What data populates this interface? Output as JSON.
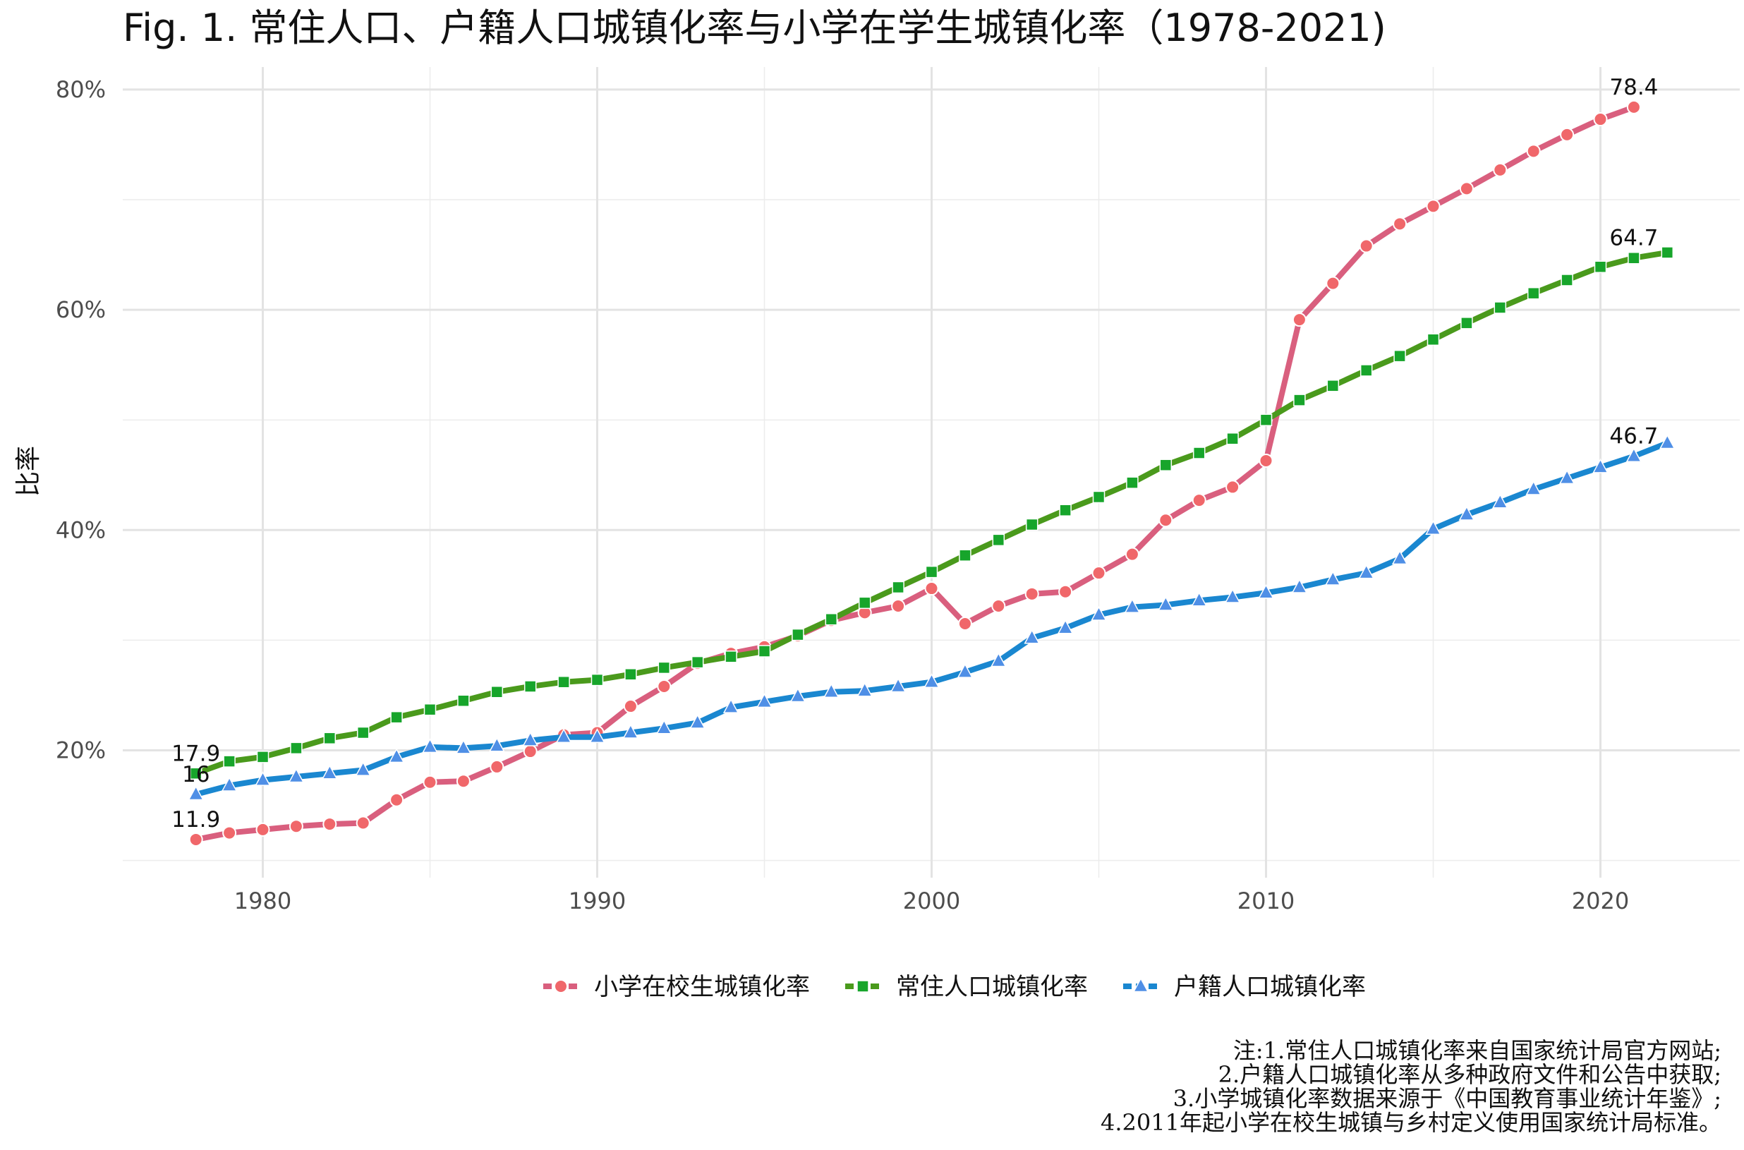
{
  "chart_data": {
    "type": "line",
    "title": "Fig. 1. 常住人口、户籍人口城镇化率与小学在学生城镇化率（1978-2021)",
    "xlabel": "",
    "ylabel": "比率",
    "xlim": [
      1976,
      2024
    ],
    "ylim": [
      9,
      82
    ],
    "x_ticks": [
      1980,
      1990,
      2000,
      2010,
      2020
    ],
    "x_tick_labels": [
      "1980",
      "1990",
      "2000",
      "2010",
      "2020"
    ],
    "y_ticks": [
      20,
      40,
      60,
      80
    ],
    "y_tick_labels": [
      "20%",
      "40%",
      "60%",
      "80%"
    ],
    "grid": true,
    "legend_position": "bottom",
    "series": [
      {
        "name": "小学在校生城镇化率",
        "color": "#d95f7e",
        "marker_color": "#f0676a",
        "marker": "circle",
        "x": [
          1978,
          1979,
          1980,
          1981,
          1982,
          1983,
          1984,
          1985,
          1986,
          1987,
          1988,
          1989,
          1990,
          1991,
          1992,
          1993,
          1994,
          1995,
          1996,
          1997,
          1998,
          1999,
          2000,
          2001,
          2002,
          2003,
          2004,
          2005,
          2006,
          2007,
          2008,
          2009,
          2010,
          2011,
          2012,
          2013,
          2014,
          2015,
          2016,
          2017,
          2018,
          2019,
          2020,
          2021
        ],
        "values": [
          11.9,
          12.5,
          12.8,
          13.1,
          13.3,
          13.4,
          15.5,
          17.1,
          17.2,
          18.5,
          19.9,
          21.4,
          21.6,
          24.0,
          25.8,
          27.9,
          28.8,
          29.4,
          30.4,
          31.8,
          32.5,
          33.1,
          34.7,
          31.5,
          33.1,
          34.2,
          34.4,
          36.1,
          37.8,
          40.9,
          42.7,
          43.9,
          46.3,
          59.1,
          62.4,
          65.8,
          67.8,
          69.4,
          71.0,
          72.7,
          74.4,
          75.9,
          77.3,
          78.4
        ],
        "labels": [
          {
            "x": 1978,
            "text": "11.9"
          },
          {
            "x": 2021,
            "text": "78.4"
          }
        ]
      },
      {
        "name": "常住人口城镇化率",
        "color": "#4a9a1c",
        "marker_color": "#17a52b",
        "marker": "square",
        "x": [
          1978,
          1979,
          1980,
          1981,
          1982,
          1983,
          1984,
          1985,
          1986,
          1987,
          1988,
          1989,
          1990,
          1991,
          1992,
          1993,
          1994,
          1995,
          1996,
          1997,
          1998,
          1999,
          2000,
          2001,
          2002,
          2003,
          2004,
          2005,
          2006,
          2007,
          2008,
          2009,
          2010,
          2011,
          2012,
          2013,
          2014,
          2015,
          2016,
          2017,
          2018,
          2019,
          2020,
          2021,
          2022
        ],
        "values": [
          17.9,
          19.0,
          19.4,
          20.2,
          21.1,
          21.6,
          23.0,
          23.7,
          24.5,
          25.3,
          25.8,
          26.2,
          26.4,
          26.9,
          27.5,
          28.0,
          28.5,
          29.0,
          30.5,
          31.9,
          33.4,
          34.8,
          36.2,
          37.7,
          39.1,
          40.5,
          41.8,
          43.0,
          44.3,
          45.9,
          47.0,
          48.3,
          50.0,
          51.8,
          53.1,
          54.5,
          55.8,
          57.3,
          58.8,
          60.2,
          61.5,
          62.7,
          63.9,
          64.7,
          65.2
        ],
        "labels": [
          {
            "x": 1978,
            "text": "17.9"
          },
          {
            "x": 2021,
            "text": "64.7"
          }
        ]
      },
      {
        "name": "户籍人口城镇化率",
        "color": "#1a87d0",
        "marker_color": "#4f8fe6",
        "marker": "triangle",
        "x": [
          1978,
          1979,
          1980,
          1981,
          1982,
          1983,
          1984,
          1985,
          1986,
          1987,
          1988,
          1989,
          1990,
          1991,
          1992,
          1993,
          1994,
          1995,
          1996,
          1997,
          1998,
          1999,
          2000,
          2001,
          2002,
          2003,
          2004,
          2005,
          2006,
          2007,
          2008,
          2009,
          2010,
          2011,
          2012,
          2013,
          2014,
          2015,
          2016,
          2017,
          2018,
          2019,
          2020,
          2021,
          2022
        ],
        "values": [
          16.0,
          16.8,
          17.3,
          17.6,
          17.9,
          18.2,
          19.4,
          20.3,
          20.2,
          20.4,
          20.9,
          21.2,
          21.2,
          21.6,
          22.0,
          22.5,
          23.9,
          24.4,
          24.9,
          25.3,
          25.4,
          25.8,
          26.2,
          27.1,
          28.1,
          30.2,
          31.1,
          32.3,
          33.0,
          33.2,
          33.6,
          33.9,
          34.3,
          34.8,
          35.5,
          36.1,
          37.4,
          40.1,
          41.4,
          42.5,
          43.7,
          44.7,
          45.7,
          46.7,
          47.9
        ],
        "labels": [
          {
            "x": 1978,
            "text": "16"
          },
          {
            "x": 2021,
            "text": "46.7"
          }
        ]
      }
    ],
    "notes": [
      "注:1.常住人口城镇化率来自国家统计局官方网站;",
      "2.户籍人口城镇化率从多种政府文件和公告中获取;",
      "3.小学城镇化率数据来源于《中国教育事业统计年鉴》;",
      "4.2011年起小学在校生城镇与乡村定义使用国家统计局标准。"
    ]
  }
}
